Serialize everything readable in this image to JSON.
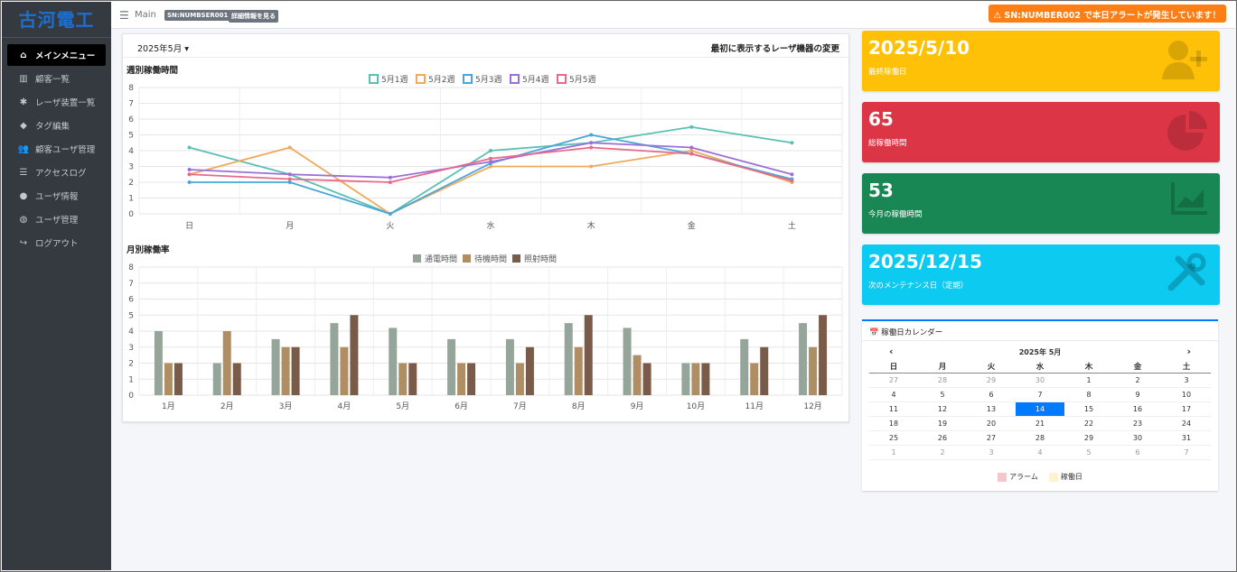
{
  "brand": "古河電工",
  "nav": [
    {
      "label": "メインメニュー",
      "icon": "home-icon",
      "active": true
    },
    {
      "label": "顧客一覧",
      "icon": "building-icon"
    },
    {
      "label": "レーザ装置一覧",
      "icon": "cogs-icon"
    },
    {
      "label": "タグ編集",
      "icon": "tag-icon"
    },
    {
      "label": "顧客ユーザ管理",
      "icon": "users-icon"
    },
    {
      "label": "アクセスログ",
      "icon": "list-icon"
    },
    {
      "label": "ユーザ情報",
      "icon": "user-icon"
    },
    {
      "label": "ユーザ管理",
      "icon": "user-cog-icon"
    },
    {
      "label": "ログアウト",
      "icon": "sign-out-icon"
    }
  ],
  "topbar": {
    "crumb": "Main",
    "sn": "SN:NUMBSER001",
    "detail": "詳細情報を見る",
    "alert": "SN:NUMBER002 で本日アラートが発生しています！",
    "alert_color": "#fd7e14"
  },
  "main": {
    "month": "2025年5月",
    "change_link": "最初に表示するレーザ機器の変更",
    "weekly_title": "週別稼働時間",
    "monthly_title": "月別稼働率"
  },
  "stats": [
    {
      "value": "2025/5/10",
      "label": "最終稼働日",
      "color": "#ffc107",
      "icon": "user-plus-icon"
    },
    {
      "value": "65",
      "label": "総稼働時間",
      "color": "#dc3545",
      "icon": "pie-chart-icon"
    },
    {
      "value": "53",
      "label": "今月の稼働時間",
      "color": "#198754",
      "icon": "area-chart-icon"
    },
    {
      "value": "2025/12/15",
      "label": "次のメンテナンス日（定期）",
      "color": "#0dcaf0",
      "icon": "tools-icon"
    }
  ],
  "calendar": {
    "title": "稼働日カレンダー",
    "month_label": "2025年 5月",
    "prev": "‹",
    "next": "›",
    "weekdays": [
      "日",
      "月",
      "火",
      "水",
      "木",
      "金",
      "土"
    ],
    "weeks": [
      [
        "27",
        "28",
        "29",
        "30",
        "1",
        "2",
        "3"
      ],
      [
        "4",
        "5",
        "6",
        "7",
        "8",
        "9",
        "10"
      ],
      [
        "11",
        "12",
        "13",
        "14",
        "15",
        "16",
        "17"
      ],
      [
        "18",
        "19",
        "20",
        "21",
        "22",
        "23",
        "24"
      ],
      [
        "25",
        "26",
        "27",
        "28",
        "29",
        "30",
        "31"
      ],
      [
        "1",
        "2",
        "3",
        "4",
        "5",
        "6",
        "7"
      ]
    ],
    "selected": "14",
    "legend": [
      {
        "label": "アラーム",
        "color": "#f5c6cb"
      },
      {
        "label": "稼働日",
        "color": "#fff3cd"
      }
    ]
  },
  "chart_data": [
    {
      "type": "line",
      "title": "週別稼働時間",
      "categories": [
        "日",
        "月",
        "火",
        "水",
        "木",
        "金",
        "土"
      ],
      "ylim": [
        0,
        8
      ],
      "grid": true,
      "legend_position": "top",
      "series": [
        {
          "name": "5月1週",
          "color": "#5bbfb5",
          "values": [
            4.2,
            2.5,
            0,
            4.0,
            4.5,
            5.5,
            4.5
          ]
        },
        {
          "name": "5月2週",
          "color": "#f0a95b",
          "values": [
            2.5,
            4.2,
            0,
            3.0,
            3.0,
            4.0,
            2.0
          ]
        },
        {
          "name": "5月3週",
          "color": "#4aa6d6",
          "values": [
            2.0,
            2.0,
            0,
            3.2,
            5.0,
            3.8,
            2.2
          ]
        },
        {
          "name": "5月4週",
          "color": "#9b6fd6",
          "values": [
            2.8,
            2.5,
            2.3,
            3.3,
            4.5,
            4.2,
            2.5
          ]
        },
        {
          "name": "5月5週",
          "color": "#e76a8c",
          "values": [
            2.5,
            2.2,
            2.0,
            3.5,
            4.2,
            3.8,
            2.1
          ]
        }
      ]
    },
    {
      "type": "bar",
      "title": "月別稼働率",
      "categories": [
        "1月",
        "2月",
        "3月",
        "4月",
        "5月",
        "6月",
        "7月",
        "8月",
        "9月",
        "10月",
        "11月",
        "12月"
      ],
      "ylim": [
        0,
        8
      ],
      "grid": true,
      "legend_position": "top",
      "series": [
        {
          "name": "通電時間",
          "color": "#95a59a",
          "values": [
            4,
            2,
            3.5,
            4.5,
            4.2,
            3.5,
            3.5,
            4.5,
            4.2,
            2,
            3.5,
            4.5
          ]
        },
        {
          "name": "待機時間",
          "color": "#b08e64",
          "values": [
            2,
            4,
            3,
            3,
            2,
            2,
            2,
            3,
            2.5,
            2,
            2,
            3
          ]
        },
        {
          "name": "照射時間",
          "color": "#7a5a48",
          "values": [
            2,
            2,
            3,
            5,
            2,
            2,
            3,
            5,
            2,
            2,
            3,
            5
          ]
        }
      ]
    }
  ]
}
